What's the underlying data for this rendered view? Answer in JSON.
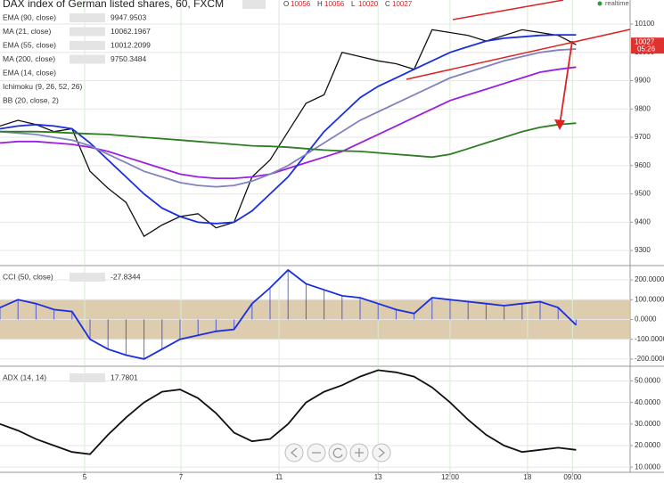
{
  "header": {
    "title": "DAX index of German listed shares, 60, FXCM",
    "ohlc_labels": [
      "O",
      "H",
      "L",
      "C"
    ],
    "ohlc": [
      10056,
      10056,
      10020,
      10027
    ],
    "status": "realtime",
    "current_price": 10027,
    "timer": "05:26"
  },
  "inactive_indicators": [
    "EMA (14, close)",
    "Ichimoku (9, 26, 52, 26)",
    "BB (20, close, 2)"
  ],
  "chart_data": [
    {
      "type": "line",
      "xlim": [
        0,
        35
      ],
      "ylim": [
        9250,
        10185
      ],
      "grid": true,
      "yticks": [
        9300,
        9400,
        9500,
        9600,
        9700,
        9800,
        9900,
        10000,
        10100
      ],
      "x": [
        0,
        1,
        2,
        3,
        4,
        5,
        6,
        7,
        8,
        9,
        10,
        11,
        12,
        13,
        14,
        15,
        16,
        17,
        18,
        19,
        20,
        21,
        22,
        23,
        24,
        25,
        26,
        27,
        28,
        29,
        30,
        31,
        32
      ],
      "series": [
        {
          "color": "#111111",
          "values": [
            9740,
            9760,
            9745,
            9720,
            9730,
            9580,
            9520,
            9470,
            9350,
            9390,
            9420,
            9430,
            9380,
            9400,
            9560,
            9620,
            9720,
            9820,
            9850,
            10000,
            9985,
            9970,
            9960,
            9940,
            10080,
            10070,
            10060,
            10040,
            10060,
            10080,
            10070,
            10060,
            10027
          ]
        },
        {
          "name": "EMA (90, close)",
          "legend_value": 9947.9503,
          "color": "#9b1fe0",
          "values": [
            9680,
            9685,
            9685,
            9680,
            9675,
            9665,
            9650,
            9630,
            9610,
            9590,
            9570,
            9560,
            9555,
            9555,
            9560,
            9570,
            9590,
            9610,
            9630,
            9650,
            9680,
            9710,
            9740,
            9770,
            9800,
            9830,
            9850,
            9870,
            9890,
            9910,
            9930,
            9940,
            9948
          ]
        },
        {
          "name": "MA (21, close)",
          "legend_value": 10062.1967,
          "color": "#1a2ee0",
          "values": [
            9730,
            9740,
            9745,
            9740,
            9730,
            9680,
            9620,
            9560,
            9500,
            9450,
            9420,
            9400,
            9395,
            9400,
            9440,
            9500,
            9560,
            9640,
            9720,
            9780,
            9840,
            9880,
            9910,
            9940,
            9970,
            10000,
            10020,
            10040,
            10050,
            10055,
            10060,
            10062,
            10062
          ]
        },
        {
          "name": "EMA (55, close)",
          "legend_value": 10012.2099,
          "color": "#8282c0",
          "values": [
            9720,
            9715,
            9710,
            9700,
            9690,
            9670,
            9640,
            9610,
            9580,
            9560,
            9540,
            9530,
            9525,
            9530,
            9545,
            9570,
            9600,
            9640,
            9680,
            9720,
            9760,
            9790,
            9820,
            9850,
            9880,
            9910,
            9930,
            9950,
            9970,
            9985,
            10000,
            10008,
            10012
          ]
        },
        {
          "name": "MA (200, close)",
          "legend_value": 9750.3484,
          "color": "#2e7d22",
          "values": [
            9720,
            9720,
            9720,
            9718,
            9715,
            9712,
            9710,
            9705,
            9700,
            9695,
            9690,
            9685,
            9680,
            9675,
            9670,
            9668,
            9665,
            9660,
            9655,
            9652,
            9650,
            9645,
            9640,
            9635,
            9630,
            9640,
            9660,
            9680,
            9700,
            9720,
            9735,
            9745,
            9750
          ]
        }
      ]
    },
    {
      "type": "line",
      "xlim": [
        0,
        35
      ],
      "ylim": [
        -232,
        268
      ],
      "grid": true,
      "stems": true,
      "band": [
        -100,
        100
      ],
      "yticks": [
        {
          "value": -200,
          "label": "-200.0000"
        },
        {
          "value": -100,
          "label": "-100.0000"
        },
        {
          "value": 0,
          "label": "0.0000"
        },
        {
          "value": 100,
          "label": "100.0000"
        },
        {
          "value": 200,
          "label": "200.0000"
        }
      ],
      "x": [
        0,
        1,
        2,
        3,
        4,
        5,
        6,
        7,
        8,
        9,
        10,
        11,
        12,
        13,
        14,
        15,
        16,
        17,
        18,
        19,
        20,
        21,
        22,
        23,
        24,
        25,
        26,
        27,
        28,
        29,
        30,
        31,
        32
      ],
      "series": [
        {
          "name": "CCI (50, close)",
          "legend_value": -27.8344,
          "color": "#1a2ee0",
          "values": [
            60,
            100,
            80,
            50,
            40,
            -100,
            -150,
            -180,
            -200,
            -150,
            -100,
            -80,
            -60,
            -50,
            80,
            160,
            250,
            180,
            150,
            120,
            110,
            80,
            50,
            30,
            110,
            100,
            90,
            80,
            70,
            80,
            90,
            60,
            -28
          ]
        }
      ]
    },
    {
      "type": "line",
      "xlim": [
        0,
        35
      ],
      "ylim": [
        8,
        56.4
      ],
      "grid": true,
      "yticks": [
        {
          "value": 10,
          "label": "10.0000"
        },
        {
          "value": 20,
          "label": "20.0000"
        },
        {
          "value": 30,
          "label": "30.0000"
        },
        {
          "value": 40,
          "label": "40.0000"
        },
        {
          "value": 50,
          "label": "50.0000"
        }
      ],
      "xticks": [
        {
          "value": 4.7,
          "label": "5"
        },
        {
          "value": 10.05,
          "label": "7"
        },
        {
          "value": 15.5,
          "label": "11"
        },
        {
          "value": 21,
          "label": "13"
        },
        {
          "value": 25,
          "label": "12:00"
        },
        {
          "value": 29.3,
          "label": "18"
        },
        {
          "value": 31.8,
          "label": "09:00"
        }
      ],
      "x": [
        0,
        1,
        2,
        3,
        4,
        5,
        6,
        7,
        8,
        9,
        10,
        11,
        12,
        13,
        14,
        15,
        16,
        17,
        18,
        19,
        20,
        21,
        22,
        23,
        24,
        25,
        26,
        27,
        28,
        29,
        30,
        31,
        32
      ],
      "series": [
        {
          "name": "ADX (14, 14)",
          "legend_value": 17.7801,
          "color": "#111111",
          "values": [
            30,
            27,
            23,
            20,
            17,
            16,
            25,
            33,
            40,
            45,
            46,
            42,
            35,
            26,
            22,
            23,
            30,
            40,
            45,
            48,
            52,
            55,
            54,
            52,
            47,
            40,
            32,
            25,
            20,
            17,
            18,
            19,
            18
          ]
        }
      ]
    }
  ]
}
